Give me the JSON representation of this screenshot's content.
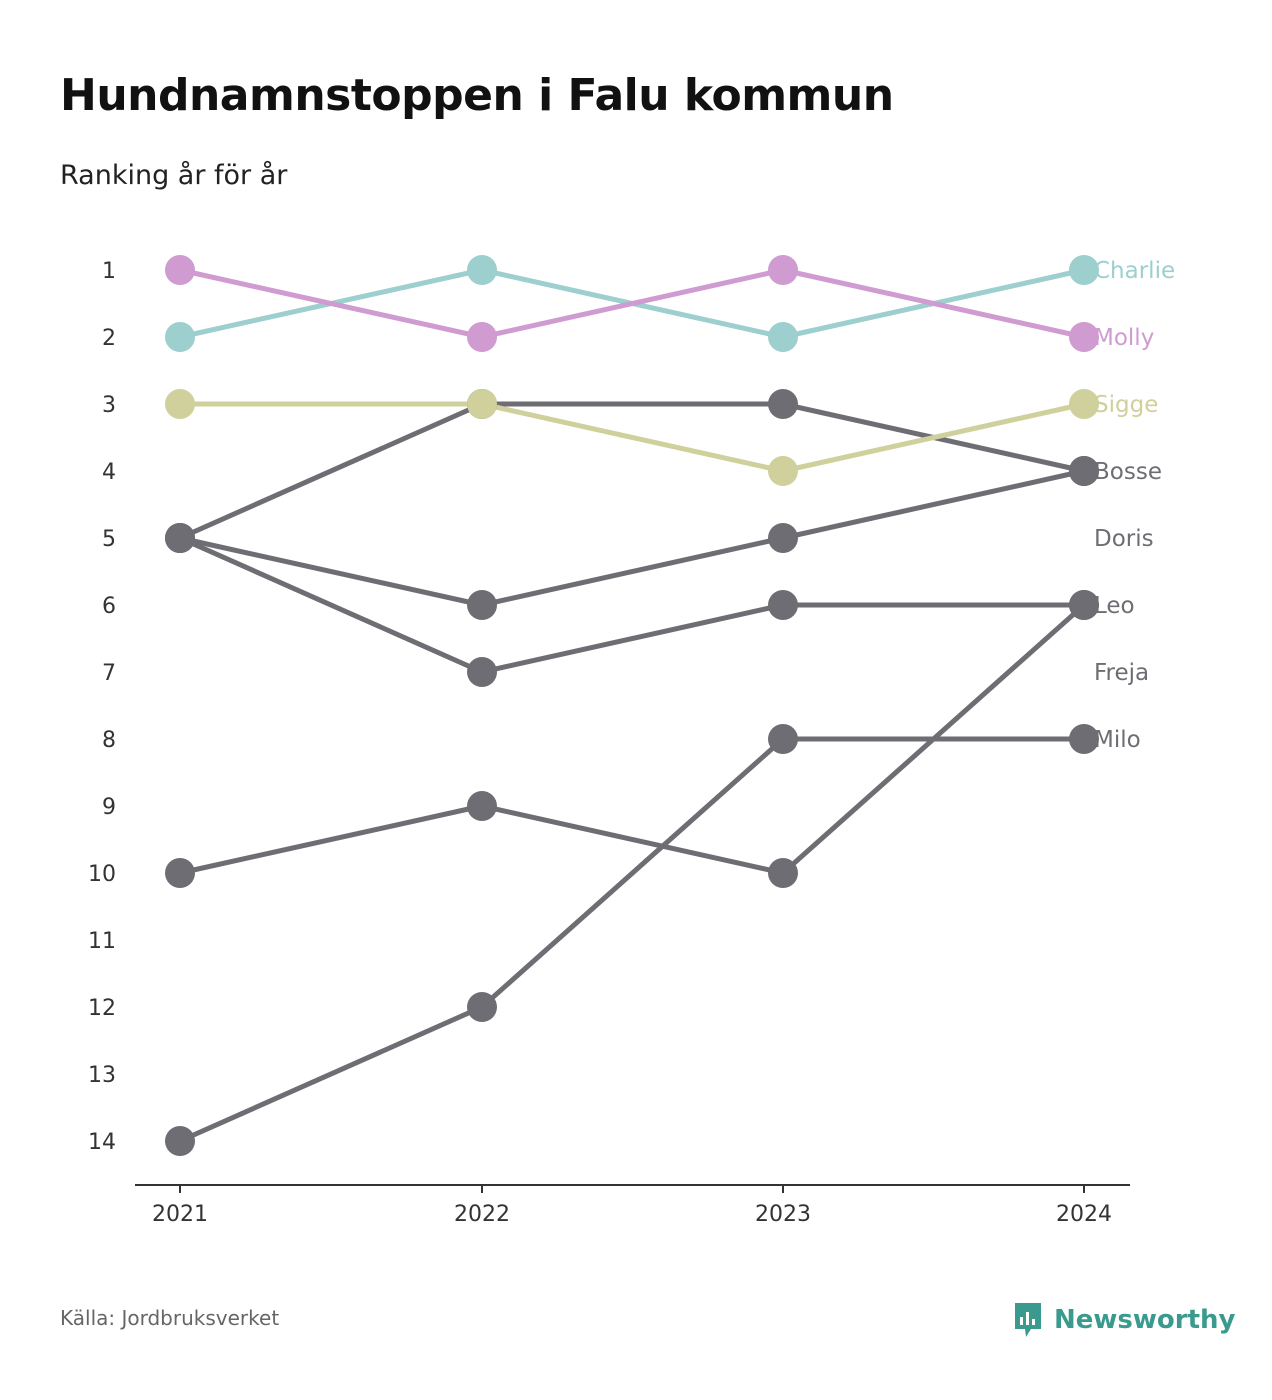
{
  "title": "Hundnamnstoppen i Falu kommun",
  "subtitle": "Ranking år för år",
  "source": "Källa: Jordbruksverket",
  "brand": {
    "name": "Newsworthy",
    "icon": "newsworthy-logo-icon",
    "color": "#3a9a8e"
  },
  "chart_data": {
    "type": "line",
    "subtype": "bump",
    "x": [
      "2021",
      "2022",
      "2023",
      "2024"
    ],
    "y_ticks": [
      1,
      2,
      3,
      4,
      5,
      6,
      7,
      8,
      9,
      10,
      11,
      12,
      13,
      14
    ],
    "ylim": [
      1,
      14
    ],
    "y_reversed": true,
    "grid": false,
    "legend": "right-end labels",
    "series": [
      {
        "name": "Charlie",
        "color": "#9ccfce",
        "label_color": "#9ccfce",
        "values": [
          2,
          1,
          2,
          1
        ]
      },
      {
        "name": "Molly",
        "color": "#cf9bd1",
        "label_color": "#cf9bd1",
        "values": [
          1,
          2,
          1,
          2
        ]
      },
      {
        "name": "Sigge",
        "color": "#cfd09b",
        "label_color": "#cfd09b",
        "values": [
          3,
          3,
          4,
          3
        ]
      },
      {
        "name": "Bosse",
        "color": "#6e6d73",
        "label_color": "#6e6d73",
        "values": [
          5,
          3,
          3,
          4
        ]
      },
      {
        "name": "Doris",
        "color": "#6e6d73",
        "label_color": "#6e6d73",
        "values": [
          5,
          6,
          5,
          4
        ]
      },
      {
        "name": "Leo",
        "color": "#6e6d73",
        "label_color": "#6e6d73",
        "values": [
          10,
          9,
          10,
          6
        ]
      },
      {
        "name": "Freja",
        "color": "#6e6d73",
        "label_color": "#6e6d73",
        "values": [
          5,
          7,
          6,
          6
        ]
      },
      {
        "name": "Milo",
        "color": "#6e6d73",
        "label_color": "#6e6d73",
        "values": [
          14,
          12,
          8,
          8
        ]
      }
    ]
  }
}
